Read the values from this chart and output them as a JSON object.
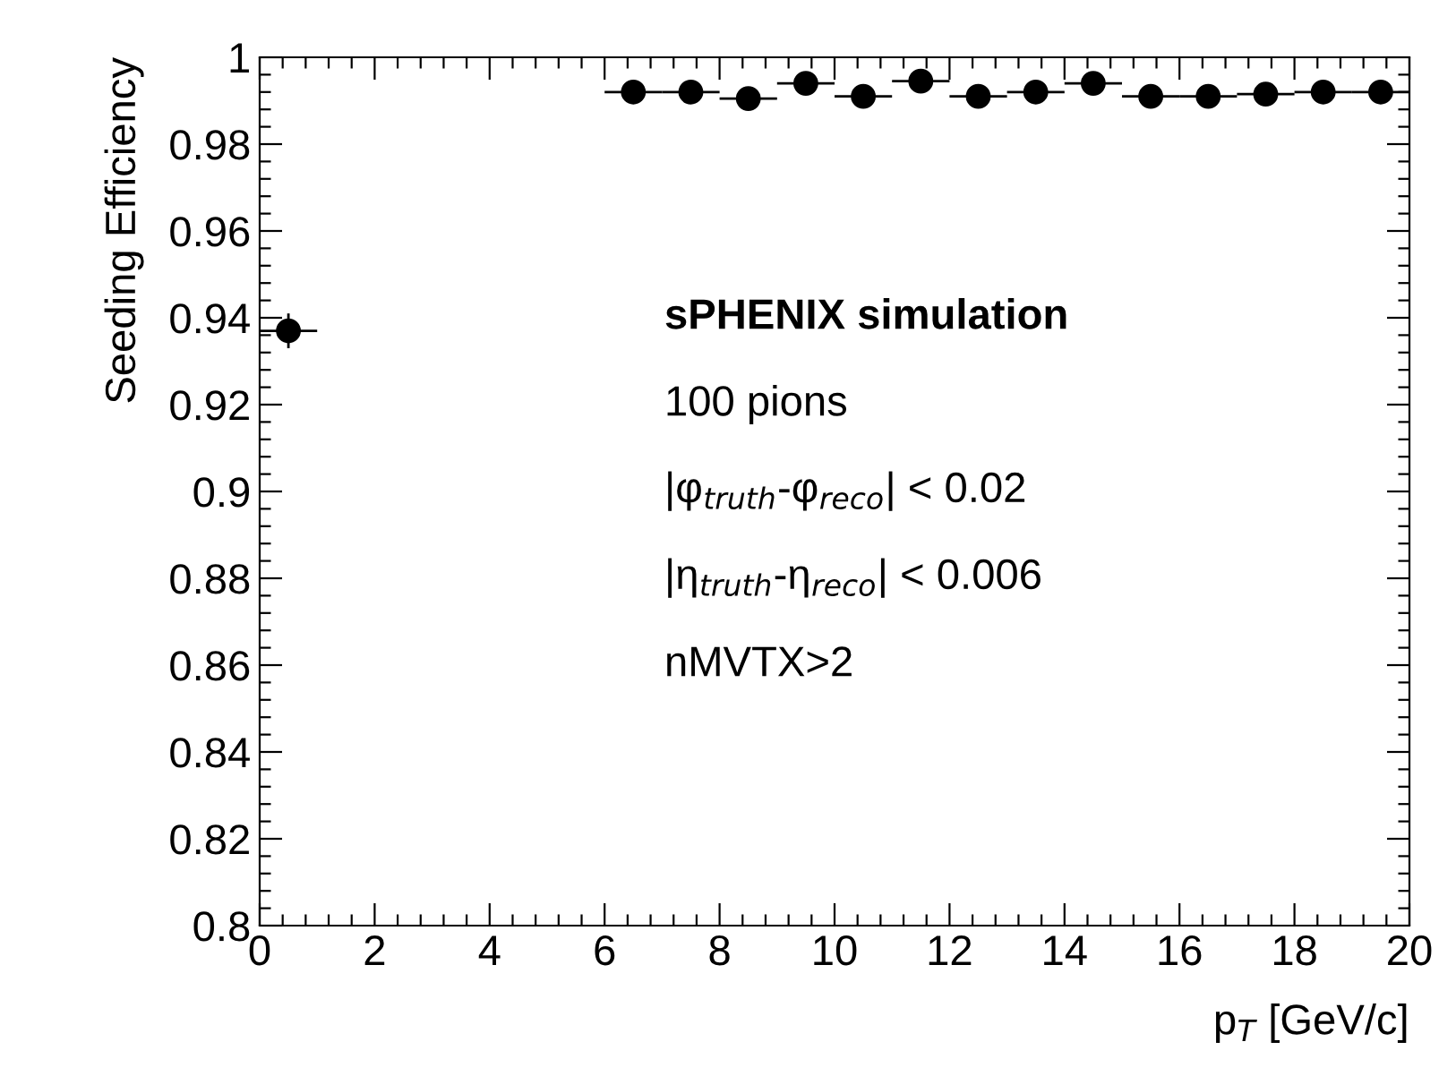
{
  "chart_data": {
    "type": "scatter",
    "ylabel": "Seeding Efficiency",
    "xlabel": "p$_{T}$ [GeV/c]",
    "x": [
      0.5,
      1.5,
      2.5,
      3.5,
      4.5,
      5.5,
      6.5,
      7.5,
      8.5,
      9.5,
      10.5,
      11.5,
      12.5,
      13.5,
      14.5,
      15.5,
      16.5,
      17.5,
      18.5,
      19.5
    ],
    "series": [
      {
        "color": "#000000",
        "values": [
          0.937,
          null,
          null,
          null,
          null,
          null,
          0.992,
          0.992,
          0.9905,
          0.994,
          0.991,
          0.9945,
          0.991,
          0.992,
          0.994,
          0.991,
          0.991,
          0.9915,
          0.992,
          0.992
        ],
        "errors": [
          0.004,
          null,
          null,
          null,
          null,
          null,
          null,
          null,
          null,
          null,
          null,
          null,
          null,
          null,
          null,
          null,
          null,
          null,
          null,
          null
        ],
        "xerrors": [
          0.5,
          null,
          null,
          null,
          null,
          null,
          0.5,
          0.5,
          0.5,
          0.5,
          0.5,
          0.5,
          0.5,
          0.5,
          0.5,
          0.5,
          0.5,
          0.5,
          0.5,
          0.5
        ]
      }
    ],
    "marker": "circle",
    "xlim": [
      0,
      20
    ],
    "ylim": [
      0.8,
      1
    ],
    "xticks": [
      0,
      2,
      4,
      6,
      8,
      10,
      12,
      14,
      16,
      18,
      20
    ],
    "yticks": [
      0.8,
      0.82,
      0.84,
      0.86,
      0.88,
      0.9,
      0.92,
      0.94,
      0.96,
      0.98,
      1
    ],
    "grid": false,
    "legend": false,
    "annotations": [
      "sPHENIX simulation",
      "100 pions",
      "|φ$_{truth}$-φ$_{reco}$| < 0.02",
      "|η$_{truth}$-η$_{reco}$| < 0.006",
      "nMVTX>2"
    ]
  }
}
